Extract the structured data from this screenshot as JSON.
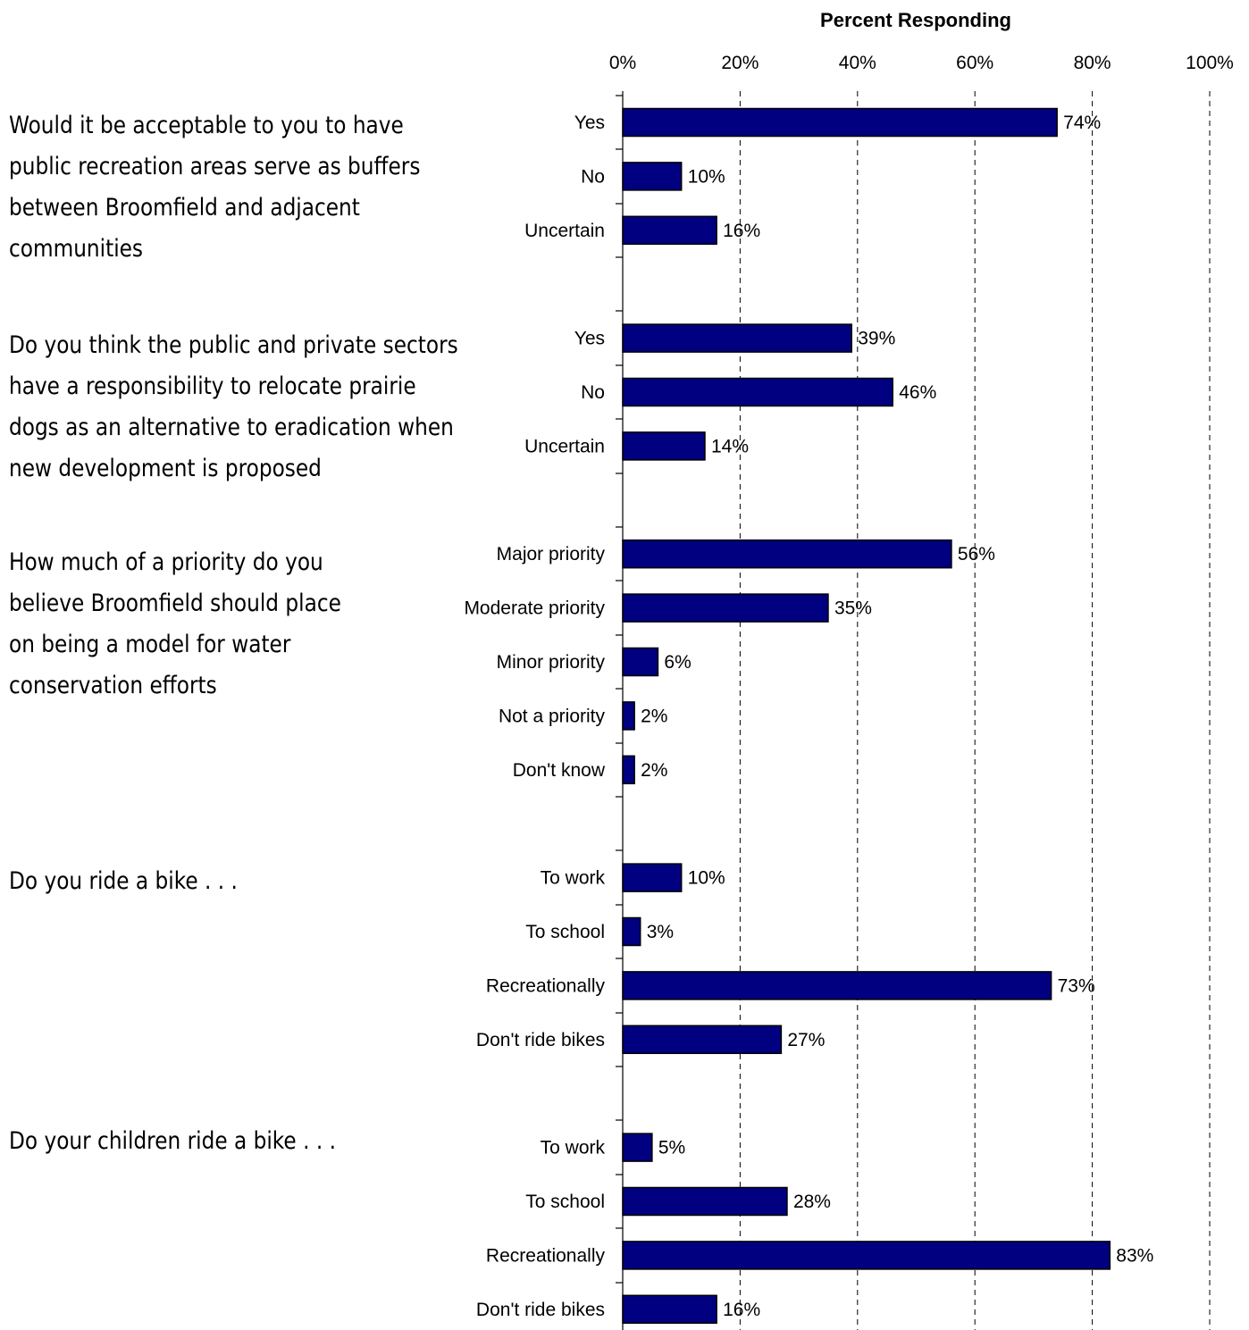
{
  "chart_data": {
    "type": "bar",
    "orientation": "horizontal",
    "xlabel": "Percent Responding",
    "xlim": [
      0,
      100
    ],
    "xticks": [
      "0%",
      "20%",
      "40%",
      "60%",
      "80%",
      "100%"
    ],
    "grid": "vertical dashed",
    "colors": {
      "bar": "#000080",
      "bar_outline": "#000000",
      "grid": "#000000"
    },
    "groups": [
      {
        "question": "Would it be acceptable to you to have public recreation areas serve as buffers between Broomfield and adjacent communities",
        "question_lines": [
          "Would it be acceptable to you to have",
          "public recreation areas serve as buffers",
          "between Broomfield and adjacent",
          "communities"
        ],
        "categories": [
          "Yes",
          "No",
          "Uncertain"
        ],
        "values": [
          74,
          10,
          16
        ],
        "labels": [
          "74%",
          "10%",
          "16%"
        ]
      },
      {
        "question": "Do you think the public and private sectors have a responsibility to relocate prairie dogs as an alternative to eradication when new development is proposed",
        "question_lines": [
          "Do you think the public and private sectors",
          "have a responsibility to relocate prairie",
          "dogs as an alternative to eradication when",
          "new development is proposed"
        ],
        "categories": [
          "Yes",
          "No",
          "Uncertain"
        ],
        "values": [
          39,
          46,
          14
        ],
        "labels": [
          "39%",
          "46%",
          "14%"
        ]
      },
      {
        "question": "How much of a priority do you believe Broomfield should place on being a model for water conservation efforts",
        "question_lines": [
          "How much of a priority do you",
          "believe Broomfield should place",
          "on being a model for water",
          "conservation efforts"
        ],
        "categories": [
          "Major priority",
          "Moderate priority",
          "Minor priority",
          "Not a priority",
          "Don't know"
        ],
        "values": [
          56,
          35,
          6,
          2,
          2
        ],
        "labels": [
          "56%",
          "35%",
          "6%",
          "2%",
          "2%"
        ]
      },
      {
        "question": "Do you ride a bike . . .",
        "question_lines": [
          "Do you ride a bike . . ."
        ],
        "categories": [
          "To work",
          "To school",
          "Recreationally",
          "Don't ride bikes"
        ],
        "values": [
          10,
          3,
          73,
          27
        ],
        "labels": [
          "10%",
          "3%",
          "73%",
          "27%"
        ]
      },
      {
        "question": "Do your children ride a bike . . .",
        "question_lines": [
          "Do your children ride a bike . . ."
        ],
        "categories": [
          "To work",
          "To school",
          "Recreationally",
          "Don't ride bikes"
        ],
        "values": [
          5,
          28,
          83,
          16
        ],
        "labels": [
          "5%",
          "28%",
          "83%",
          "16%"
        ]
      }
    ]
  }
}
